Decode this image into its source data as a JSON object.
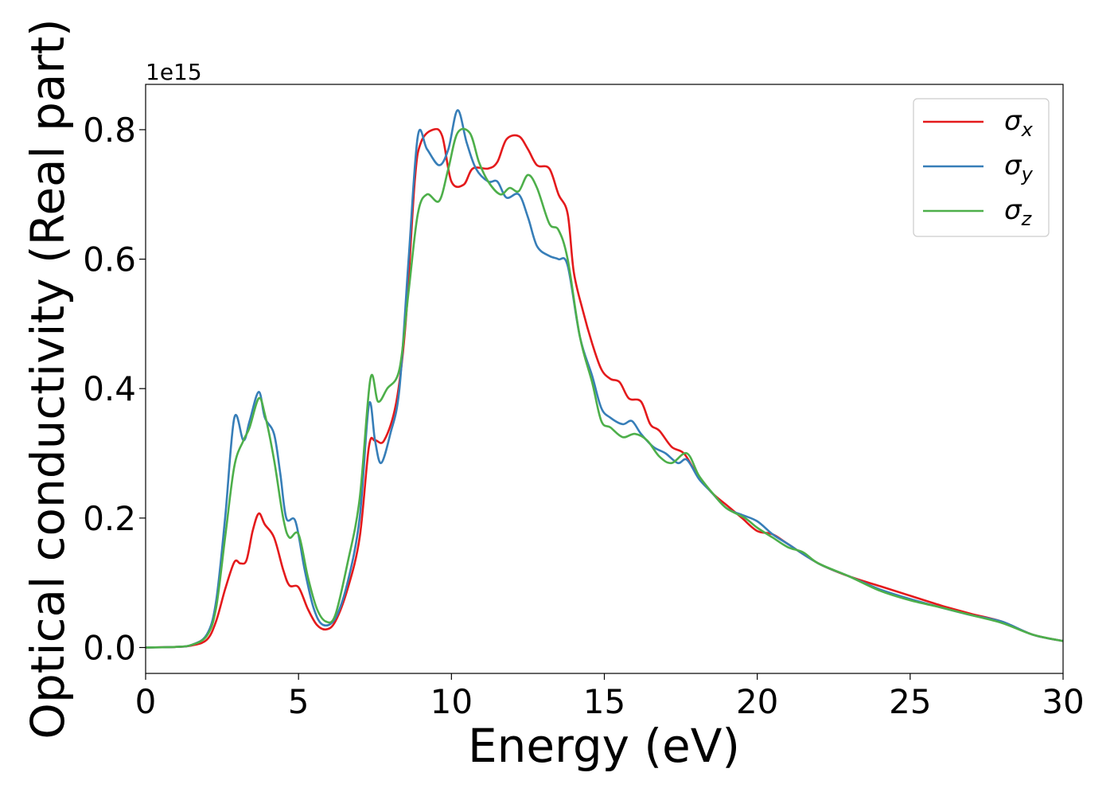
{
  "chart_data": {
    "type": "line",
    "xlabel": "Energy (eV)",
    "ylabel": "Optical conductivity (Real part)",
    "y_offset_label": "1e15",
    "xlim": [
      0,
      30
    ],
    "ylim": [
      -0.04,
      0.87
    ],
    "x_ticks": [
      0,
      5,
      10,
      15,
      20,
      25,
      30
    ],
    "x_tick_labels": [
      "0",
      "5",
      "10",
      "15",
      "20",
      "25",
      "30"
    ],
    "y_ticks": [
      0.0,
      0.2,
      0.4,
      0.6,
      0.8
    ],
    "y_tick_labels": [
      "0.0",
      "0.2",
      "0.4",
      "0.6",
      "0.8"
    ],
    "grid": false,
    "legend_position": "top-right",
    "series": [
      {
        "name": "σx",
        "symbol": "σ",
        "subscript": "x",
        "color": "#e41a1c",
        "points": [
          [
            0,
            0
          ],
          [
            1,
            0.001
          ],
          [
            1.5,
            0.003
          ],
          [
            2,
            0.012
          ],
          [
            2.3,
            0.04
          ],
          [
            2.6,
            0.09
          ],
          [
            2.9,
            0.132
          ],
          [
            3.1,
            0.13
          ],
          [
            3.3,
            0.135
          ],
          [
            3.5,
            0.18
          ],
          [
            3.7,
            0.207
          ],
          [
            3.9,
            0.19
          ],
          [
            4.2,
            0.17
          ],
          [
            4.5,
            0.12
          ],
          [
            4.7,
            0.096
          ],
          [
            5.0,
            0.093
          ],
          [
            5.3,
            0.06
          ],
          [
            5.6,
            0.035
          ],
          [
            5.9,
            0.028
          ],
          [
            6.2,
            0.04
          ],
          [
            6.6,
            0.09
          ],
          [
            7.0,
            0.17
          ],
          [
            7.3,
            0.31
          ],
          [
            7.5,
            0.32
          ],
          [
            7.8,
            0.32
          ],
          [
            8.2,
            0.38
          ],
          [
            8.5,
            0.5
          ],
          [
            8.8,
            0.72
          ],
          [
            9.0,
            0.78
          ],
          [
            9.4,
            0.8
          ],
          [
            9.7,
            0.79
          ],
          [
            10.0,
            0.72
          ],
          [
            10.4,
            0.715
          ],
          [
            10.7,
            0.74
          ],
          [
            11.2,
            0.74
          ],
          [
            11.5,
            0.75
          ],
          [
            11.8,
            0.785
          ],
          [
            12.2,
            0.79
          ],
          [
            12.5,
            0.77
          ],
          [
            12.8,
            0.745
          ],
          [
            13.2,
            0.74
          ],
          [
            13.5,
            0.7
          ],
          [
            13.8,
            0.67
          ],
          [
            14.0,
            0.58
          ],
          [
            14.3,
            0.52
          ],
          [
            14.6,
            0.47
          ],
          [
            14.9,
            0.43
          ],
          [
            15.2,
            0.415
          ],
          [
            15.5,
            0.41
          ],
          [
            15.8,
            0.385
          ],
          [
            16.2,
            0.38
          ],
          [
            16.5,
            0.345
          ],
          [
            16.8,
            0.335
          ],
          [
            17.2,
            0.31
          ],
          [
            17.6,
            0.3
          ],
          [
            18.0,
            0.27
          ],
          [
            18.5,
            0.24
          ],
          [
            19.0,
            0.22
          ],
          [
            19.5,
            0.2
          ],
          [
            20.0,
            0.18
          ],
          [
            20.5,
            0.175
          ],
          [
            21.0,
            0.16
          ],
          [
            22.0,
            0.13
          ],
          [
            23.0,
            0.11
          ],
          [
            24.0,
            0.095
          ],
          [
            25.0,
            0.08
          ],
          [
            26.0,
            0.065
          ],
          [
            27.0,
            0.052
          ],
          [
            28.0,
            0.04
          ],
          [
            29.0,
            0.02
          ],
          [
            30.0,
            0.01
          ]
        ]
      },
      {
        "name": "σy",
        "symbol": "σ",
        "subscript": "y",
        "color": "#377eb8",
        "points": [
          [
            0,
            0
          ],
          [
            1,
            0.001
          ],
          [
            1.5,
            0.004
          ],
          [
            2,
            0.02
          ],
          [
            2.3,
            0.07
          ],
          [
            2.6,
            0.2
          ],
          [
            2.9,
            0.355
          ],
          [
            3.2,
            0.32
          ],
          [
            3.4,
            0.35
          ],
          [
            3.7,
            0.395
          ],
          [
            3.9,
            0.355
          ],
          [
            4.2,
            0.33
          ],
          [
            4.4,
            0.27
          ],
          [
            4.6,
            0.2
          ],
          [
            4.9,
            0.195
          ],
          [
            5.2,
            0.12
          ],
          [
            5.5,
            0.06
          ],
          [
            5.8,
            0.035
          ],
          [
            6.2,
            0.045
          ],
          [
            6.6,
            0.1
          ],
          [
            7.0,
            0.2
          ],
          [
            7.3,
            0.375
          ],
          [
            7.5,
            0.32
          ],
          [
            7.7,
            0.285
          ],
          [
            8.0,
            0.33
          ],
          [
            8.3,
            0.4
          ],
          [
            8.6,
            0.6
          ],
          [
            8.9,
            0.79
          ],
          [
            9.2,
            0.77
          ],
          [
            9.6,
            0.745
          ],
          [
            9.9,
            0.77
          ],
          [
            10.2,
            0.83
          ],
          [
            10.5,
            0.78
          ],
          [
            10.8,
            0.74
          ],
          [
            11.2,
            0.72
          ],
          [
            11.5,
            0.72
          ],
          [
            11.8,
            0.695
          ],
          [
            12.2,
            0.7
          ],
          [
            12.5,
            0.665
          ],
          [
            12.8,
            0.62
          ],
          [
            13.2,
            0.605
          ],
          [
            13.5,
            0.6
          ],
          [
            13.8,
            0.59
          ],
          [
            14.2,
            0.48
          ],
          [
            14.6,
            0.42
          ],
          [
            14.9,
            0.37
          ],
          [
            15.2,
            0.355
          ],
          [
            15.6,
            0.345
          ],
          [
            15.9,
            0.35
          ],
          [
            16.2,
            0.33
          ],
          [
            16.6,
            0.31
          ],
          [
            17.0,
            0.3
          ],
          [
            17.4,
            0.285
          ],
          [
            17.7,
            0.29
          ],
          [
            18.1,
            0.26
          ],
          [
            18.5,
            0.24
          ],
          [
            19.0,
            0.215
          ],
          [
            19.5,
            0.205
          ],
          [
            20.0,
            0.195
          ],
          [
            20.5,
            0.175
          ],
          [
            21.0,
            0.16
          ],
          [
            22.0,
            0.13
          ],
          [
            23.0,
            0.11
          ],
          [
            24.0,
            0.09
          ],
          [
            25.0,
            0.075
          ],
          [
            26.0,
            0.062
          ],
          [
            27.0,
            0.05
          ],
          [
            28.0,
            0.04
          ],
          [
            29.0,
            0.02
          ],
          [
            30.0,
            0.01
          ]
        ]
      },
      {
        "name": "σz",
        "symbol": "σ",
        "subscript": "z",
        "color": "#4daf4a",
        "points": [
          [
            0,
            0
          ],
          [
            1,
            0.001
          ],
          [
            1.5,
            0.004
          ],
          [
            2,
            0.018
          ],
          [
            2.3,
            0.06
          ],
          [
            2.6,
            0.17
          ],
          [
            2.9,
            0.28
          ],
          [
            3.2,
            0.32
          ],
          [
            3.4,
            0.34
          ],
          [
            3.7,
            0.385
          ],
          [
            3.9,
            0.36
          ],
          [
            4.2,
            0.29
          ],
          [
            4.5,
            0.2
          ],
          [
            4.7,
            0.17
          ],
          [
            5.0,
            0.175
          ],
          [
            5.3,
            0.11
          ],
          [
            5.6,
            0.06
          ],
          [
            5.9,
            0.04
          ],
          [
            6.2,
            0.05
          ],
          [
            6.6,
            0.13
          ],
          [
            7.0,
            0.23
          ],
          [
            7.35,
            0.415
          ],
          [
            7.6,
            0.38
          ],
          [
            7.9,
            0.4
          ],
          [
            8.3,
            0.43
          ],
          [
            8.6,
            0.55
          ],
          [
            8.9,
            0.67
          ],
          [
            9.2,
            0.7
          ],
          [
            9.6,
            0.69
          ],
          [
            9.9,
            0.74
          ],
          [
            10.2,
            0.795
          ],
          [
            10.6,
            0.795
          ],
          [
            10.9,
            0.75
          ],
          [
            11.2,
            0.72
          ],
          [
            11.6,
            0.7
          ],
          [
            11.9,
            0.71
          ],
          [
            12.2,
            0.705
          ],
          [
            12.5,
            0.73
          ],
          [
            12.8,
            0.71
          ],
          [
            13.2,
            0.655
          ],
          [
            13.5,
            0.645
          ],
          [
            13.8,
            0.6
          ],
          [
            14.2,
            0.48
          ],
          [
            14.6,
            0.41
          ],
          [
            14.9,
            0.35
          ],
          [
            15.2,
            0.34
          ],
          [
            15.6,
            0.325
          ],
          [
            16.0,
            0.33
          ],
          [
            16.4,
            0.32
          ],
          [
            16.8,
            0.295
          ],
          [
            17.2,
            0.285
          ],
          [
            17.7,
            0.3
          ],
          [
            18.1,
            0.265
          ],
          [
            18.6,
            0.235
          ],
          [
            19.0,
            0.215
          ],
          [
            19.6,
            0.2
          ],
          [
            20.0,
            0.185
          ],
          [
            20.5,
            0.17
          ],
          [
            21.0,
            0.155
          ],
          [
            21.5,
            0.147
          ],
          [
            22.0,
            0.13
          ],
          [
            23.0,
            0.11
          ],
          [
            24.0,
            0.088
          ],
          [
            25.0,
            0.073
          ],
          [
            26.0,
            0.062
          ],
          [
            27.0,
            0.05
          ],
          [
            28.0,
            0.038
          ],
          [
            29.0,
            0.02
          ],
          [
            30.0,
            0.01
          ]
        ]
      }
    ]
  }
}
